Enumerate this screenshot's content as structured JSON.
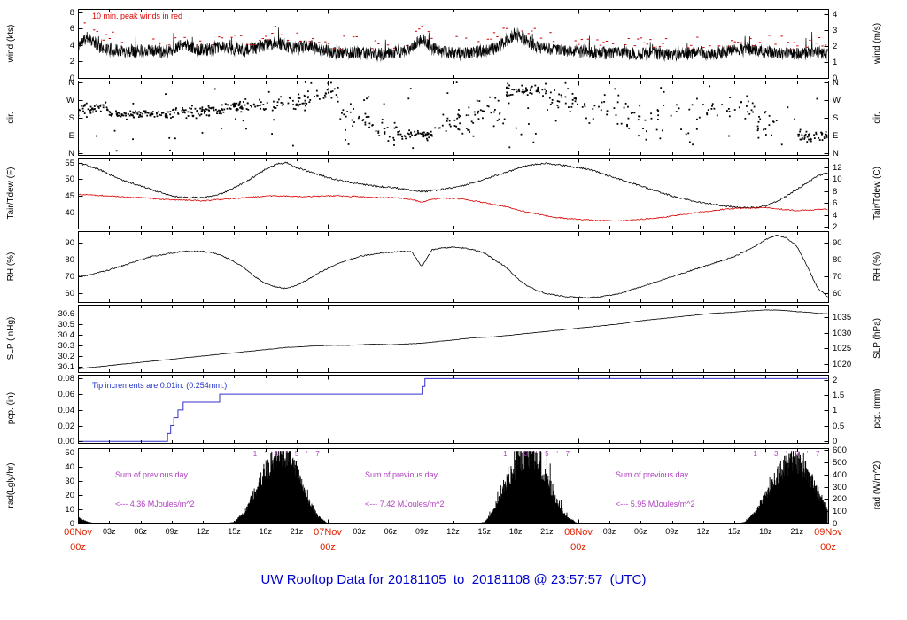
{
  "title": "UW Rooftop Data for 20181105  to  20181108 @ 23:57:57  (UTC)",
  "colors": {
    "trace": "#000000",
    "peak_red": "#cc0000",
    "dew_red": "#dd0000",
    "pcp_blue": "#3333cc",
    "purple": "#b040c0",
    "date_red": "#dd2200",
    "title_blue": "#0000cc"
  },
  "annotations": {
    "wind_note": "10 min. peak winds in red",
    "pcp_note": "Tip increments are 0.01in. (0.254mm.)",
    "rad_sums": [
      {
        "line1": "Sum of previous day",
        "line2": "<--- 4.36 MJoules/m^2",
        "center_hour": 8
      },
      {
        "line1": "Sum of previous day",
        "line2": "<--- 7.42 MJoules/m^2",
        "center_hour": 32
      },
      {
        "line1": "Sum of previous day",
        "line2": "<--- 5.95 MJoules/m^2",
        "center_hour": 56
      }
    ]
  },
  "x_axis": {
    "unit": "hours UTC, 2018-11-06 00z through 2018-11-09 00z",
    "range_hours": [
      0,
      72
    ],
    "minor_tick_labels": [
      "03z",
      "06z",
      "09z",
      "12z",
      "15z",
      "18z",
      "21z"
    ],
    "day_labels": [
      {
        "line1": "06Nov",
        "line2": "00z",
        "hour": 0
      },
      {
        "line1": "07Nov",
        "line2": "00z",
        "hour": 24
      },
      {
        "line1": "08Nov",
        "line2": "00z",
        "hour": 48
      },
      {
        "line1": "09Nov",
        "line2": "00z",
        "hour": 72
      }
    ]
  },
  "chart_data": [
    {
      "kind": "wind",
      "type": "line",
      "ylabel_left": "wind (kts)",
      "ylabel_right": "wind (m/s)",
      "ylim": [
        0,
        8.4
      ],
      "yticks_left": {
        "values": [
          0,
          2,
          4,
          6,
          8
        ],
        "labels": [
          "0",
          "2",
          "4",
          "6",
          "8"
        ]
      },
      "yticks_right": {
        "values": [
          0,
          1.944,
          3.889,
          5.833,
          7.778
        ],
        "labels": [
          "0",
          "1",
          "2",
          "3",
          "4"
        ]
      },
      "series": [
        {
          "name": "10-min average wind (kts), hourly estimates",
          "color": "#000000",
          "noise": 1.5,
          "hourly": [
            4.0,
            5.0,
            3.8,
            3.5,
            3.3,
            3.2,
            3.4,
            3.3,
            3.2,
            3.4,
            4.0,
            3.6,
            3.4,
            3.6,
            3.8,
            3.5,
            3.3,
            3.6,
            4.0,
            4.2,
            3.8,
            3.6,
            4.0,
            3.6,
            3.2,
            3.0,
            3.0,
            3.1,
            3.0,
            2.9,
            3.0,
            3.2,
            3.6,
            4.8,
            3.6,
            3.2,
            3.0,
            3.0,
            3.1,
            3.3,
            3.6,
            4.4,
            5.4,
            4.6,
            3.8,
            3.5,
            3.4,
            3.3,
            3.2,
            3.1,
            3.0,
            3.0,
            3.1,
            3.0,
            2.9,
            3.0,
            2.9,
            2.8,
            2.9,
            3.0,
            3.1,
            3.0,
            3.1,
            3.3,
            3.5,
            3.4,
            3.2,
            3.0,
            3.0,
            2.9,
            3.0,
            3.1,
            2.8
          ]
        },
        {
          "name": "10-min peak wind (kts), drawn as red dashes above average",
          "color": "#cc0000",
          "offset": 1.3,
          "noise": 1.8
        }
      ]
    },
    {
      "kind": "dir",
      "type": "scatter",
      "ylabel_left": "dir.",
      "ylabel_right": "dir.",
      "ylim": [
        -8,
        368
      ],
      "yticks_left": {
        "values": [
          0,
          90,
          180,
          270,
          360
        ],
        "labels": [
          "N",
          "E",
          "S",
          "W",
          "N"
        ]
      },
      "yticks_right": {
        "values": [
          0,
          90,
          180,
          270,
          360
        ],
        "labels": [
          "N",
          "E",
          "S",
          "W",
          "N"
        ]
      },
      "clusters": [
        {
          "t0": 0,
          "t1": 3,
          "center": 225,
          "spread": 35,
          "per_hour": 14
        },
        {
          "t0": 3,
          "t1": 9,
          "center": 200,
          "spread": 22,
          "per_hour": 14
        },
        {
          "t0": 9,
          "t1": 14,
          "center": 212,
          "spread": 28,
          "per_hour": 14
        },
        {
          "t0": 14,
          "t1": 19,
          "center": 235,
          "spread": 32,
          "per_hour": 12
        },
        {
          "t0": 19,
          "t1": 22,
          "center": 262,
          "spread": 38,
          "per_hour": 12
        },
        {
          "t0": 22,
          "t1": 25,
          "center": 300,
          "spread": 45,
          "per_hour": 10
        },
        {
          "t0": 25,
          "t1": 28,
          "center": 180,
          "spread": 85,
          "per_hour": 8
        },
        {
          "t0": 28,
          "t1": 31,
          "center": 120,
          "spread": 55,
          "per_hour": 9
        },
        {
          "t0": 31,
          "t1": 34,
          "center": 95,
          "spread": 22,
          "per_hour": 14
        },
        {
          "t0": 34,
          "t1": 38,
          "center": 150,
          "spread": 65,
          "per_hour": 8
        },
        {
          "t0": 38,
          "t1": 41,
          "center": 215,
          "spread": 55,
          "per_hour": 8
        },
        {
          "t0": 41,
          "t1": 45,
          "center": 320,
          "spread": 28,
          "per_hour": 13
        },
        {
          "t0": 45,
          "t1": 48,
          "center": 280,
          "spread": 55,
          "per_hour": 8
        },
        {
          "t0": 48,
          "t1": 54,
          "center": 200,
          "spread": 80,
          "per_hour": 5
        },
        {
          "t0": 54,
          "t1": 60,
          "center": 170,
          "spread": 90,
          "per_hour": 4
        },
        {
          "t0": 60,
          "t1": 65,
          "center": 240,
          "spread": 70,
          "per_hour": 5
        },
        {
          "t0": 65,
          "t1": 69,
          "center": 140,
          "spread": 75,
          "per_hour": 5
        },
        {
          "t0": 69,
          "t1": 72,
          "center": 85,
          "spread": 35,
          "per_hour": 14
        }
      ],
      "stray_per_hour": 1.2
    },
    {
      "kind": "smooth",
      "type": "line",
      "ylabel_left": "Tair/Tdew (F)",
      "ylabel_right": "Tair/Tdew (C)",
      "ylim": [
        35.2,
        56.5
      ],
      "yticks_left": {
        "values": [
          40,
          45,
          50,
          55
        ],
        "labels": [
          "40",
          "45",
          "50",
          "55"
        ]
      },
      "yticks_right": {
        "values": [
          35.6,
          39.2,
          42.8,
          46.4,
          50,
          53.6
        ],
        "labels": [
          "2",
          "4",
          "6",
          "8",
          "10",
          "12"
        ]
      },
      "series": [
        {
          "name": "Tair (F)",
          "color": "#000000",
          "noise": 0.5,
          "hourly": [
            55,
            54,
            53,
            51.5,
            50,
            49,
            48,
            47,
            46,
            45,
            44.6,
            44.5,
            44.5,
            45,
            46,
            47.5,
            49,
            51,
            53,
            54.5,
            55,
            53.5,
            52.5,
            51.5,
            50.5,
            49.8,
            49.2,
            48.6,
            48.2,
            47.8,
            47.6,
            47.2,
            46.8,
            46.2,
            46.6,
            47,
            47.5,
            48,
            49,
            50,
            51,
            52,
            53,
            54,
            54.5,
            54.8,
            54.4,
            54,
            53.5,
            53,
            52,
            51,
            50,
            49,
            48,
            47,
            46,
            45,
            44.2,
            43.5,
            43,
            42.5,
            42,
            41.6,
            41.5,
            41.5,
            42,
            43.2,
            45,
            47,
            49,
            51,
            52
          ]
        },
        {
          "name": "Tdew (F)",
          "color": "#dd0000",
          "noise": 0.35,
          "hourly": [
            45.5,
            45.3,
            45.2,
            45,
            44.8,
            44.6,
            44.5,
            44.3,
            44,
            43.8,
            43.8,
            43.7,
            43.5,
            43.8,
            44,
            44.2,
            44.5,
            44.7,
            45,
            45,
            45,
            44.8,
            44.8,
            44.9,
            45,
            45,
            44.9,
            44.8,
            44.6,
            44.5,
            44.5,
            44.3,
            44,
            43,
            44,
            44.3,
            44.3,
            44,
            43.5,
            43,
            42.4,
            41.8,
            41,
            40.2,
            39.6,
            39,
            38.5,
            38.2,
            38,
            37.8,
            37.6,
            37.5,
            37.5,
            37.7,
            38,
            38.2,
            38.5,
            39,
            39.4,
            39.8,
            40.2,
            40.6,
            41,
            41.2,
            41.3,
            41.4,
            41.5,
            41.2,
            40.8,
            40.6,
            40.7,
            40.9,
            41
          ]
        }
      ]
    },
    {
      "kind": "smooth",
      "type": "line",
      "ylabel_left": "RH (%)",
      "ylabel_right": "RH (%)",
      "ylim": [
        55,
        97
      ],
      "yticks_left": {
        "values": [
          60,
          70,
          80,
          90
        ],
        "labels": [
          "60",
          "70",
          "80",
          "90"
        ]
      },
      "yticks_right": {
        "values": [
          60,
          70,
          80,
          90
        ],
        "labels": [
          "60",
          "70",
          "80",
          "90"
        ]
      },
      "series": [
        {
          "name": "relative humidity (%)",
          "color": "#000000",
          "noise": 0.7,
          "hourly": [
            70,
            71,
            72.5,
            74,
            76,
            78,
            80,
            82,
            83,
            84,
            85,
            85,
            85,
            84,
            82,
            79,
            75,
            70,
            66,
            64,
            63,
            65,
            68,
            72,
            75,
            78,
            80,
            82,
            83,
            84,
            84.5,
            85,
            85,
            76,
            86,
            87,
            87.5,
            87,
            86,
            84,
            80,
            76,
            70,
            65,
            62,
            60,
            59,
            58,
            58,
            57.5,
            58,
            59,
            60,
            62,
            64,
            66,
            68,
            70,
            72,
            74,
            76,
            78,
            80,
            82,
            85,
            88,
            92,
            94.5,
            93,
            88,
            76,
            63,
            58
          ]
        }
      ]
    },
    {
      "kind": "smooth",
      "type": "line",
      "ylabel_left": "SLP (inHg)",
      "ylabel_right": "SLP (hPa)",
      "ylim": [
        30.05,
        30.68
      ],
      "yticks_left": {
        "values": [
          30.1,
          30.2,
          30.3,
          30.4,
          30.5,
          30.6
        ],
        "labels": [
          "30.1",
          "30.2",
          "30.3",
          "30.4",
          "30.5",
          "30.6"
        ]
      },
      "yticks_right": {
        "values": [
          30.122,
          30.27,
          30.417,
          30.565
        ],
        "labels": [
          "1020",
          "1025",
          "1030",
          "1035"
        ]
      },
      "series": [
        {
          "name": "sea level pressure (inHg)",
          "color": "#000000",
          "noise": 0.004,
          "hourly": [
            30.08,
            30.09,
            30.1,
            30.11,
            30.12,
            30.13,
            30.14,
            30.15,
            30.16,
            30.17,
            30.18,
            30.19,
            30.2,
            30.21,
            30.22,
            30.23,
            30.24,
            30.25,
            30.26,
            30.27,
            30.28,
            30.285,
            30.29,
            30.295,
            30.3,
            30.3,
            30.3,
            30.305,
            30.31,
            30.31,
            30.305,
            30.31,
            30.315,
            30.32,
            30.33,
            30.34,
            30.35,
            30.36,
            30.37,
            30.375,
            30.38,
            30.39,
            30.4,
            30.41,
            30.42,
            30.43,
            30.44,
            30.45,
            30.46,
            30.47,
            30.48,
            30.49,
            30.5,
            30.515,
            30.53,
            30.54,
            30.55,
            30.56,
            30.57,
            30.58,
            30.59,
            30.6,
            30.605,
            30.61,
            30.62,
            30.625,
            30.63,
            30.63,
            30.625,
            30.615,
            30.61,
            30.6,
            30.595
          ]
        }
      ]
    },
    {
      "kind": "pcp",
      "type": "line",
      "ylabel_left": "pcp. (in)",
      "ylabel_right": "pcp. (mm)",
      "ylim": [
        -0.002,
        0.085
      ],
      "yticks_left": {
        "values": [
          0,
          0.02,
          0.04,
          0.06,
          0.08
        ],
        "labels": [
          "0.00",
          "0.02",
          "0.04",
          "0.06",
          "0.08"
        ]
      },
      "yticks_right": {
        "values": [
          0,
          0.0197,
          0.0394,
          0.0591,
          0.0787
        ],
        "labels": [
          "0",
          "0.5",
          "1",
          "1.5",
          "2"
        ]
      },
      "color": "#3333cc",
      "steps": [
        [
          0,
          0
        ],
        [
          8.3,
          0
        ],
        [
          8.6,
          0.01
        ],
        [
          8.9,
          0.02
        ],
        [
          9.2,
          0.03
        ],
        [
          9.6,
          0.04
        ],
        [
          10.1,
          0.05
        ],
        [
          13.4,
          0.05
        ],
        [
          13.6,
          0.06
        ],
        [
          32.9,
          0.06
        ],
        [
          33.1,
          0.07
        ],
        [
          33.3,
          0.08
        ],
        [
          72,
          0.08
        ]
      ]
    },
    {
      "kind": "rad",
      "type": "area",
      "ylabel_left": "rad(Lgly/hr)",
      "ylabel_right": "rad (W/m^2)",
      "ylim": [
        0,
        53
      ],
      "yticks_left": {
        "values": [
          0,
          10,
          20,
          30,
          40,
          50
        ],
        "labels": [
          "0",
          "10",
          "20",
          "30",
          "40",
          "50"
        ]
      },
      "yticks_right": {
        "values": [
          0,
          8.6,
          17.2,
          25.8,
          34.4,
          43.0,
          51.6
        ],
        "labels": [
          "0",
          "100",
          "200",
          "300",
          "400",
          "500",
          "600"
        ]
      },
      "series": [
        {
          "name": "solar radiation (Langley/hr)",
          "color": "#000000",
          "hourly": [
            4,
            1,
            0,
            0,
            0,
            0,
            0,
            0,
            0,
            0,
            0,
            0,
            0,
            0,
            0,
            1,
            8,
            22,
            38,
            46,
            48,
            36,
            18,
            5,
            0,
            0,
            0,
            0,
            0,
            0,
            0,
            0,
            0,
            0,
            0,
            0,
            0,
            0,
            0,
            1,
            10,
            25,
            38,
            48,
            44,
            30,
            14,
            4,
            0,
            0,
            0,
            0,
            0,
            0,
            0,
            0,
            0,
            0,
            0,
            0,
            0,
            0,
            0,
            0,
            1,
            8,
            20,
            33,
            42,
            44,
            36,
            22,
            8
          ]
        }
      ],
      "hour_marks": {
        "labels": [
          "1",
          "'",
          "3",
          "'",
          "5",
          "'",
          "7"
        ],
        "day_start_hours": [
          17,
          41,
          65
        ],
        "color": "#b040c0"
      }
    }
  ]
}
